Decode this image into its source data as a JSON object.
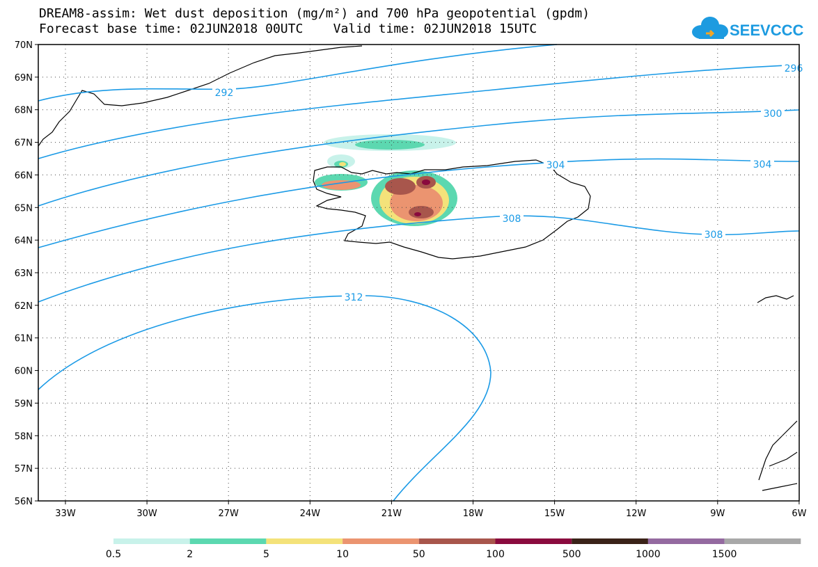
{
  "title_line1": "DREAM8-assim: Wet dust deposition (mg/m²) and 700 hPa geopotential (gpdm)",
  "title_line2": "Forecast base time: 02JUN2018 00UTC    Valid time: 02JUN2018 15UTC",
  "logo_text": "SEEVCCC",
  "map": {
    "lat_labels": [
      "70N",
      "69N",
      "68N",
      "67N",
      "66N",
      "65N",
      "64N",
      "63N",
      "62N",
      "61N",
      "60N",
      "59N",
      "58N",
      "57N",
      "56N"
    ],
    "lon_labels": [
      "33W",
      "30W",
      "27W",
      "24W",
      "21W",
      "18W",
      "15W",
      "12W",
      "9W",
      "6W"
    ],
    "contour_labels": [
      "292",
      "296",
      "300",
      "304",
      "304",
      "308",
      "308",
      "312"
    ],
    "contour_color": "#1a9ae6"
  },
  "legend": {
    "labels": [
      "0.5",
      "2",
      "5",
      "10",
      "50",
      "100",
      "500",
      "1000",
      "1500"
    ],
    "colors": [
      "#c8f2ea",
      "#5cd8b0",
      "#f4e27a",
      "#eb9470",
      "#a8564c",
      "#8a0a3e",
      "#3a2218",
      "#946aa0",
      "#a8a8a8"
    ]
  }
}
